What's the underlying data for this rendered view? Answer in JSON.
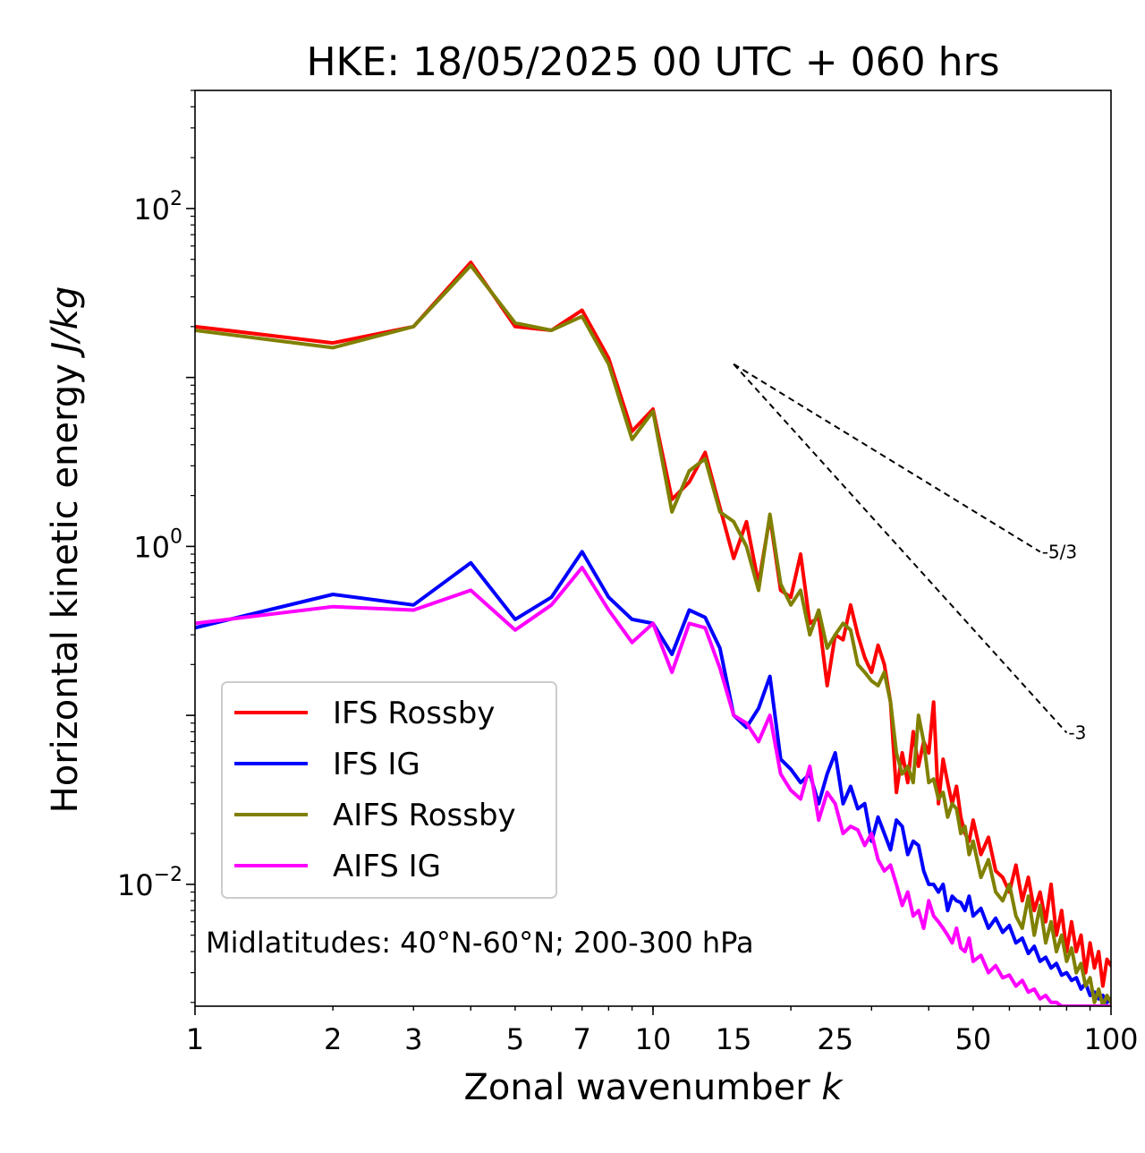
{
  "chart_data": {
    "type": "line",
    "title": "HKE: 18/05/2025 00 UTC + 060 hrs",
    "xlabel": "Zonal wavenumber",
    "xlabel_var": "k",
    "ylabel": "Horizontal kinetic energy",
    "ylabel_unit": "J/kg",
    "xscale": "log",
    "yscale": "log",
    "xlim": [
      1,
      100
    ],
    "ylim": [
      0.0019,
      500
    ],
    "x_ticks": [
      {
        "value": 1,
        "label": "1"
      },
      {
        "value": 2,
        "label": "2"
      },
      {
        "value": 3,
        "label": "3"
      },
      {
        "value": 5,
        "label": "5"
      },
      {
        "value": 7,
        "label": "7"
      },
      {
        "value": 10,
        "label": "10"
      },
      {
        "value": 15,
        "label": "15"
      },
      {
        "value": 25,
        "label": "25"
      },
      {
        "value": 50,
        "label": "50"
      },
      {
        "value": 100,
        "label": "100"
      }
    ],
    "y_ticks": [
      {
        "value": 100,
        "base": "10",
        "exp": "2"
      },
      {
        "value": 1,
        "base": "10",
        "exp": "0"
      },
      {
        "value": 0.01,
        "base": "10",
        "exp": "−2"
      }
    ],
    "annotation": "Midlatitudes: 40°N-60°N; 200-300 hPa",
    "legend_position": "lower-left",
    "reference_lines": [
      {
        "label": "-5/3",
        "x": [
          15,
          70
        ],
        "y": [
          12.0,
          0.93
        ]
      },
      {
        "label": "-3",
        "x": [
          15,
          80
        ],
        "y": [
          12.0,
          0.079
        ]
      }
    ],
    "series": [
      {
        "name": "IFS Rossby",
        "color": "#ff0000",
        "x": [
          1,
          2,
          3,
          4,
          5,
          6,
          7,
          8,
          9,
          10,
          11,
          12,
          13,
          14,
          15,
          16,
          17,
          18,
          19,
          20,
          21,
          22,
          23,
          24,
          25,
          26,
          27,
          28,
          29,
          30,
          31,
          32,
          33,
          34,
          35,
          36,
          37,
          38,
          39,
          40,
          41,
          42,
          43,
          44,
          45,
          46,
          47,
          48,
          49,
          50,
          52,
          54,
          56,
          58,
          60,
          62,
          64,
          66,
          68,
          70,
          72,
          74,
          76,
          78,
          80,
          82,
          84,
          86,
          88,
          90,
          92,
          94,
          96,
          98,
          100
        ],
        "y": [
          20,
          16,
          20,
          48,
          20,
          19,
          25,
          13,
          4.8,
          6.5,
          1.9,
          2.4,
          3.6,
          1.7,
          0.85,
          1.4,
          0.6,
          1.5,
          0.55,
          0.5,
          0.9,
          0.35,
          0.38,
          0.15,
          0.3,
          0.28,
          0.45,
          0.3,
          0.22,
          0.18,
          0.26,
          0.2,
          0.12,
          0.035,
          0.06,
          0.04,
          0.08,
          0.05,
          0.07,
          0.06,
          0.12,
          0.03,
          0.055,
          0.04,
          0.03,
          0.038,
          0.025,
          0.02,
          0.018,
          0.024,
          0.015,
          0.019,
          0.012,
          0.011,
          0.009,
          0.013,
          0.008,
          0.011,
          0.007,
          0.009,
          0.006,
          0.01,
          0.005,
          0.007,
          0.004,
          0.006,
          0.004,
          0.005,
          0.003,
          0.0045,
          0.0032,
          0.004,
          0.0025,
          0.0036,
          0.0033
        ]
      },
      {
        "name": "IFS IG",
        "color": "#0000ff",
        "x": [
          1,
          2,
          3,
          4,
          5,
          6,
          7,
          8,
          9,
          10,
          11,
          12,
          13,
          14,
          15,
          16,
          17,
          18,
          19,
          20,
          21,
          22,
          23,
          24,
          25,
          26,
          27,
          28,
          29,
          30,
          31,
          32,
          33,
          34,
          35,
          36,
          37,
          38,
          39,
          40,
          41,
          42,
          43,
          44,
          45,
          46,
          47,
          48,
          49,
          50,
          52,
          54,
          56,
          58,
          60,
          62,
          64,
          66,
          68,
          70,
          72,
          74,
          76,
          78,
          80,
          82,
          84,
          86,
          88,
          90,
          92,
          94,
          96,
          98,
          100
        ],
        "y": [
          0.33,
          0.52,
          0.45,
          0.8,
          0.37,
          0.5,
          0.93,
          0.5,
          0.37,
          0.35,
          0.23,
          0.42,
          0.38,
          0.25,
          0.1,
          0.085,
          0.11,
          0.17,
          0.055,
          0.048,
          0.04,
          0.045,
          0.03,
          0.045,
          0.06,
          0.03,
          0.038,
          0.028,
          0.03,
          0.018,
          0.025,
          0.02,
          0.016,
          0.024,
          0.022,
          0.015,
          0.018,
          0.017,
          0.012,
          0.01,
          0.01,
          0.009,
          0.01,
          0.007,
          0.0085,
          0.008,
          0.0078,
          0.007,
          0.0085,
          0.0065,
          0.0072,
          0.0055,
          0.0063,
          0.0052,
          0.0057,
          0.0045,
          0.0048,
          0.0039,
          0.0043,
          0.0035,
          0.0037,
          0.0032,
          0.0034,
          0.0029,
          0.003,
          0.0027,
          0.0028,
          0.0024,
          0.0026,
          0.0022,
          0.0023,
          0.0021,
          0.0022,
          0.002,
          0.0021
        ]
      },
      {
        "name": "AIFS Rossby",
        "color": "#808000",
        "x": [
          1,
          2,
          3,
          4,
          5,
          6,
          7,
          8,
          9,
          10,
          11,
          12,
          13,
          14,
          15,
          16,
          17,
          18,
          19,
          20,
          21,
          22,
          23,
          24,
          25,
          26,
          27,
          28,
          29,
          30,
          31,
          32,
          33,
          34,
          35,
          36,
          37,
          38,
          39,
          40,
          41,
          42,
          43,
          44,
          45,
          46,
          47,
          48,
          49,
          50,
          52,
          54,
          56,
          58,
          60,
          62,
          64,
          66,
          68,
          70,
          72,
          74,
          76,
          78,
          80,
          82,
          84,
          86,
          88,
          90,
          92,
          94,
          96,
          98,
          100
        ],
        "y": [
          19,
          15,
          20,
          46,
          21,
          19,
          23,
          12,
          4.3,
          6.3,
          1.6,
          2.8,
          3.3,
          1.6,
          1.4,
          1.0,
          0.55,
          1.55,
          0.6,
          0.45,
          0.55,
          0.3,
          0.42,
          0.25,
          0.3,
          0.35,
          0.32,
          0.2,
          0.18,
          0.16,
          0.15,
          0.18,
          0.12,
          0.06,
          0.045,
          0.05,
          0.04,
          0.1,
          0.07,
          0.04,
          0.042,
          0.032,
          0.035,
          0.025,
          0.03,
          0.028,
          0.02,
          0.022,
          0.015,
          0.018,
          0.011,
          0.014,
          0.009,
          0.008,
          0.01,
          0.0065,
          0.0055,
          0.0085,
          0.005,
          0.0075,
          0.0045,
          0.006,
          0.004,
          0.005,
          0.0035,
          0.0042,
          0.003,
          0.0034,
          0.0025,
          0.0028,
          0.002,
          0.0024,
          0.0019,
          0.0022,
          0.002
        ]
      },
      {
        "name": "AIFS IG",
        "color": "#ff00ff",
        "x": [
          1,
          2,
          3,
          4,
          5,
          6,
          7,
          8,
          9,
          10,
          11,
          12,
          13,
          14,
          15,
          16,
          17,
          18,
          19,
          20,
          21,
          22,
          23,
          24,
          25,
          26,
          27,
          28,
          29,
          30,
          31,
          32,
          33,
          34,
          35,
          36,
          37,
          38,
          39,
          40,
          41,
          42,
          43,
          44,
          45,
          46,
          47,
          48,
          49,
          50,
          52,
          54,
          56,
          58,
          60,
          62,
          64,
          66,
          68,
          70,
          72,
          74,
          76,
          78,
          80,
          82,
          84,
          86,
          88,
          90,
          92,
          94,
          96,
          98,
          100
        ],
        "y": [
          0.35,
          0.44,
          0.42,
          0.55,
          0.32,
          0.45,
          0.75,
          0.42,
          0.27,
          0.35,
          0.18,
          0.35,
          0.33,
          0.19,
          0.1,
          0.09,
          0.07,
          0.1,
          0.045,
          0.036,
          0.032,
          0.05,
          0.024,
          0.035,
          0.03,
          0.02,
          0.022,
          0.021,
          0.017,
          0.02,
          0.014,
          0.012,
          0.013,
          0.01,
          0.0075,
          0.009,
          0.0065,
          0.007,
          0.0055,
          0.008,
          0.0065,
          0.006,
          0.0055,
          0.005,
          0.0045,
          0.0055,
          0.0042,
          0.004,
          0.0048,
          0.0035,
          0.0038,
          0.003,
          0.0033,
          0.0028,
          0.0029,
          0.0025,
          0.0027,
          0.0023,
          0.0024,
          0.0021,
          0.0022,
          0.002,
          0.002,
          0.0019,
          0.0019,
          0.0019,
          0.0019,
          0.0019,
          0.0019,
          0.0019,
          0.0019,
          0.0019,
          0.0019,
          0.0019,
          0.0019
        ]
      }
    ]
  }
}
